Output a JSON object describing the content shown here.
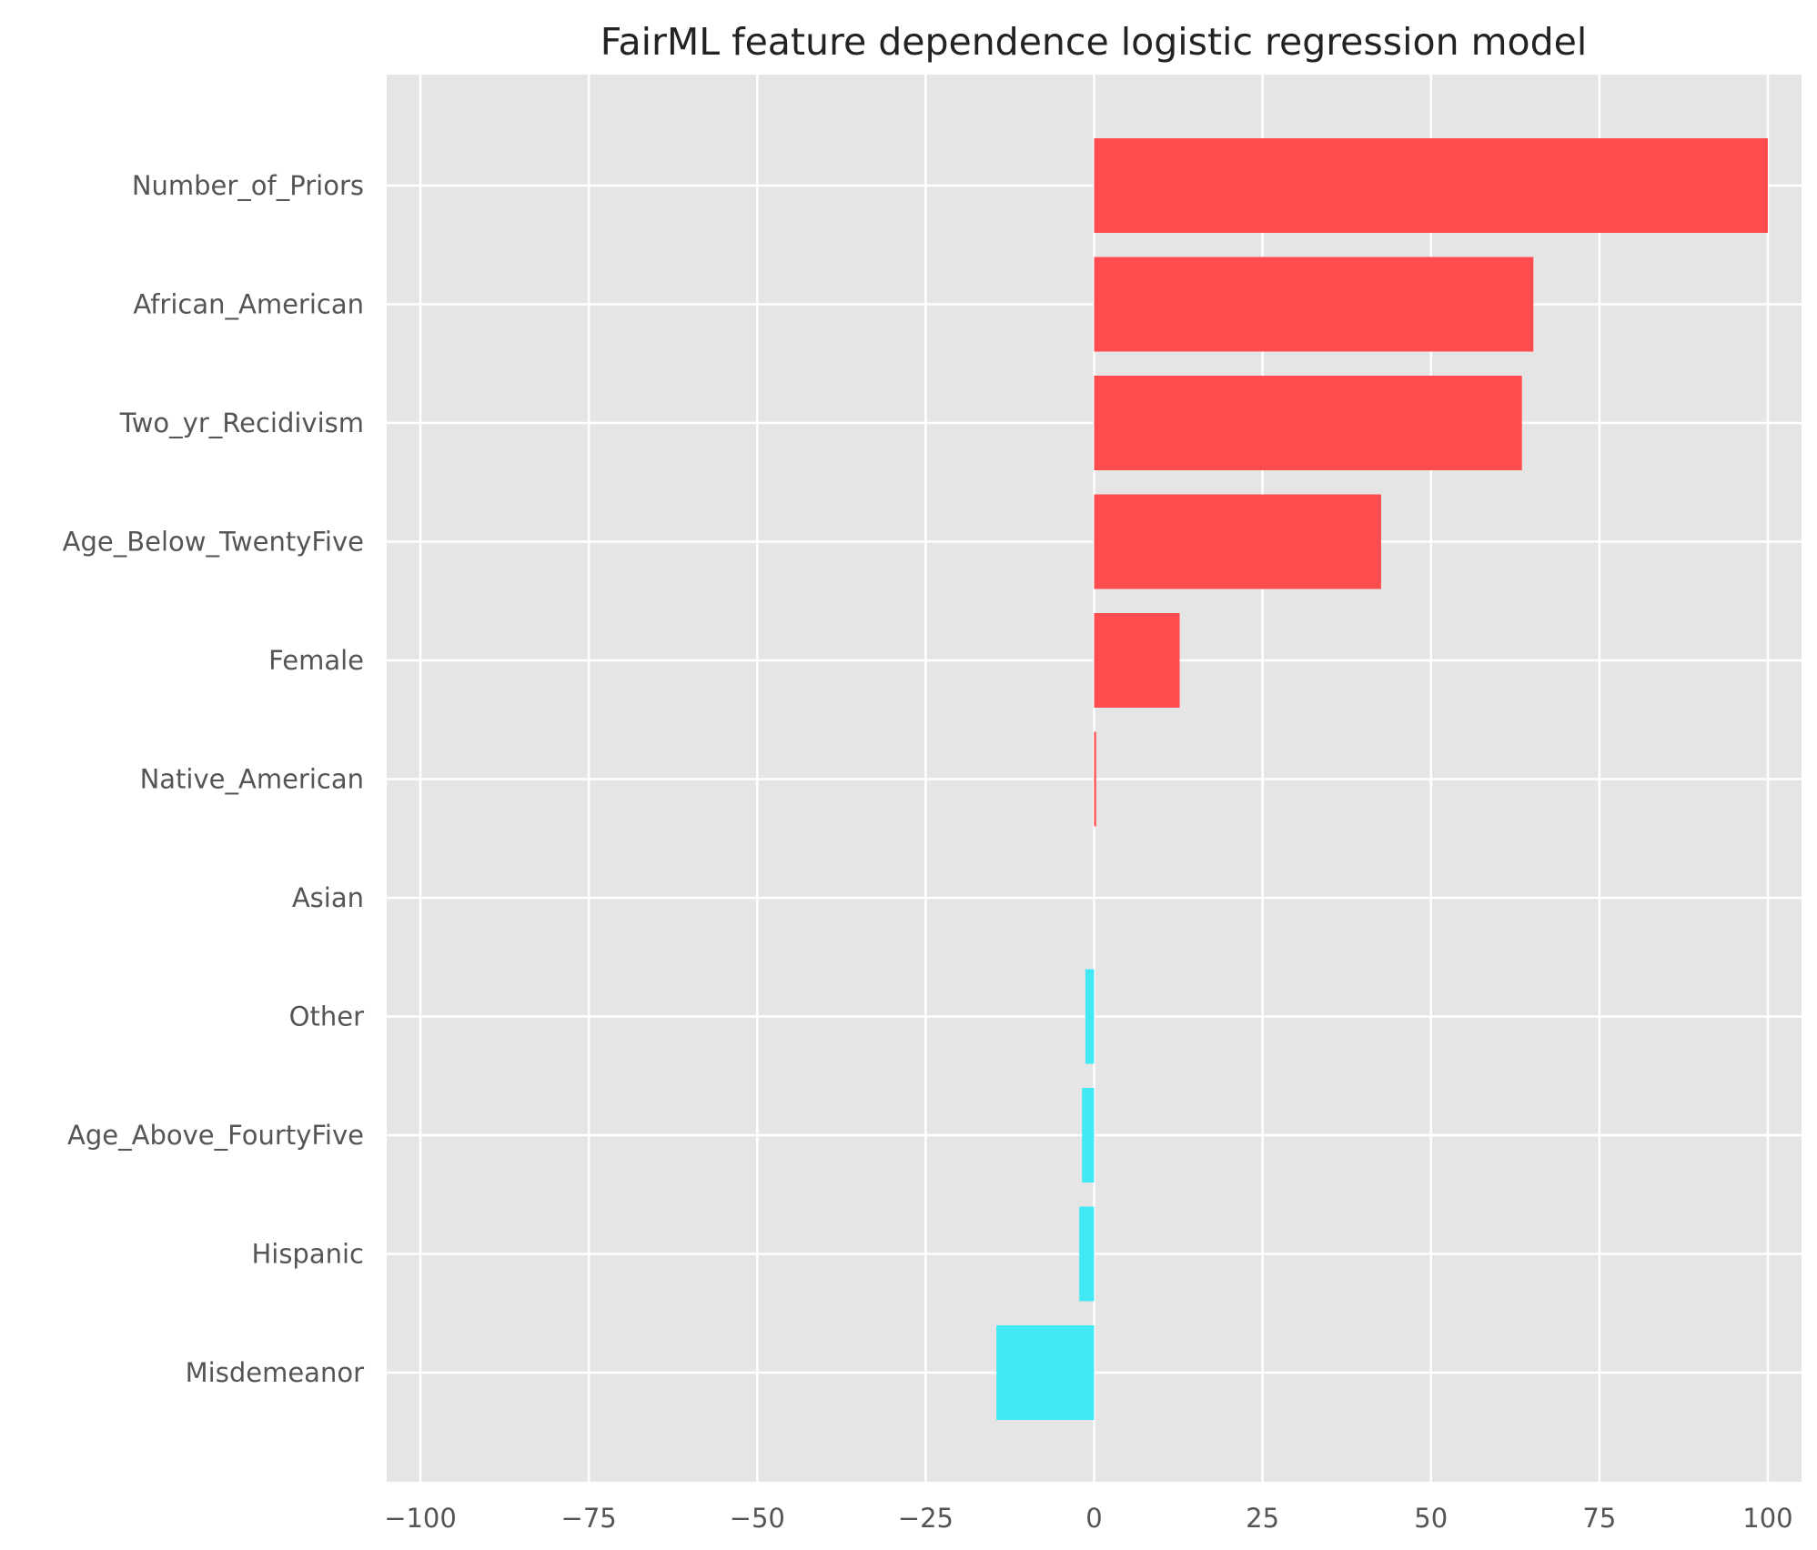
{
  "chart_data": {
    "type": "bar",
    "orientation": "horizontal",
    "title": "FairML feature dependence logistic regression model",
    "xlabel": "",
    "ylabel": "",
    "categories": [
      "Number_of_Priors",
      "African_American",
      "Two_yr_Recidivism",
      "Age_Below_TwentyFive",
      "Female",
      "Native_American",
      "Asian",
      "Other",
      "Age_Above_FourtyFive",
      "Hispanic",
      "Misdemeanor"
    ],
    "values": [
      100,
      65.2,
      63.5,
      42.6,
      12.7,
      0.3,
      0,
      -1.3,
      -1.8,
      -2.2,
      -14.5
    ],
    "xlim": [
      -105,
      105
    ],
    "xticks": [
      -100,
      -75,
      -50,
      -25,
      0,
      25,
      50,
      75,
      100
    ],
    "xtick_labels": [
      "−100",
      "−75",
      "−50",
      "−25",
      "0",
      "25",
      "50",
      "75",
      "100"
    ],
    "grid": true,
    "legend": "none",
    "colors": {
      "positive": "#ff4d4f",
      "negative": "#42e9f5",
      "plot_background": "#e5e5e5",
      "grid": "#ffffff"
    }
  }
}
